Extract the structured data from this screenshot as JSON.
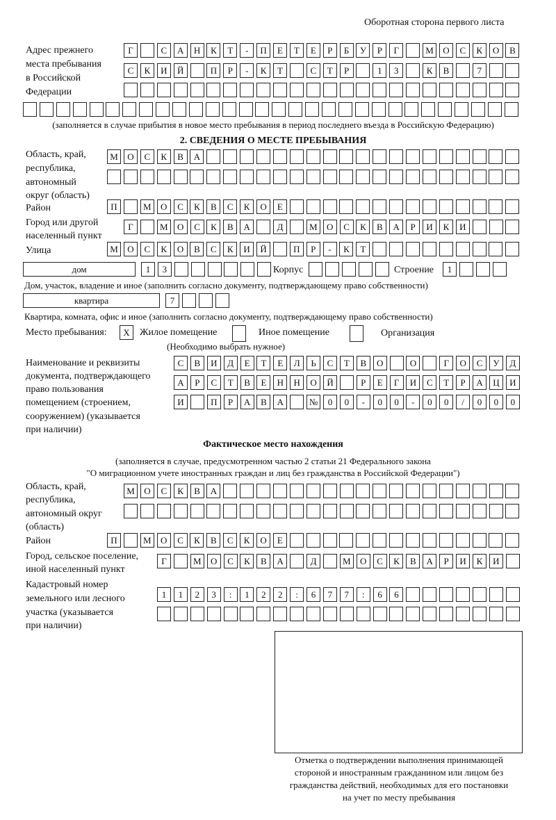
{
  "header": {
    "sheet_side": "Оборотная сторона первого листа"
  },
  "prev_address": {
    "label_lines": [
      "Адрес прежнего",
      "места пребывания",
      "в Российской",
      "Федерации"
    ],
    "rows": [
      [
        "Г",
        "",
        "С",
        "А",
        "Н",
        "К",
        "Т",
        "-",
        "П",
        "Е",
        "Т",
        "Е",
        "Р",
        "Б",
        "У",
        "Р",
        "Г",
        "",
        "М",
        "О",
        "С",
        "К",
        "О",
        "В"
      ],
      [
        "С",
        "К",
        "И",
        "Й",
        "",
        "П",
        "Р",
        "-",
        "К",
        "Т",
        "",
        "С",
        "Т",
        "Р",
        "",
        "1",
        "3",
        "",
        "К",
        "В",
        "",
        "7",
        "",
        ""
      ],
      [
        "",
        "",
        "",
        "",
        "",
        "",
        "",
        "",
        "",
        "",
        "",
        "",
        "",
        "",
        "",
        "",
        "",
        "",
        "",
        "",
        "",
        "",
        "",
        ""
      ],
      [
        "",
        "",
        "",
        "",
        "",
        "",
        "",
        "",
        "",
        "",
        "",
        "",
        "",
        "",
        "",
        "",
        "",
        "",
        "",
        "",
        "",
        "",
        "",
        "",
        "",
        "",
        "",
        "",
        "",
        ""
      ]
    ],
    "note": "(заполняется в случае прибытия в новое место пребывания в период последнего въезда в Российскую Федерацию)"
  },
  "stay": {
    "section_title": "2. СВЕДЕНИЯ О МЕСТЕ ПРЕБЫВАНИЯ",
    "region_label_lines": [
      "Область, край,",
      "республика,",
      "автономный",
      "округ (область)"
    ],
    "region_rows": [
      [
        "М",
        "О",
        "С",
        "К",
        "В",
        "А",
        "",
        "",
        "",
        "",
        "",
        "",
        "",
        "",
        "",
        "",
        "",
        "",
        "",
        "",
        "",
        "",
        "",
        "",
        ""
      ],
      [
        "",
        "",
        "",
        "",
        "",
        "",
        "",
        "",
        "",
        "",
        "",
        "",
        "",
        "",
        "",
        "",
        "",
        "",
        "",
        "",
        "",
        "",
        "",
        "",
        ""
      ]
    ],
    "district_label": "Район",
    "district_row": [
      "П",
      "",
      "М",
      "О",
      "С",
      "К",
      "В",
      "С",
      "К",
      "О",
      "Е",
      "",
      "",
      "",
      "",
      "",
      "",
      "",
      "",
      "",
      "",
      "",
      "",
      "",
      ""
    ],
    "city_label_lines": [
      "Город или другой",
      "населенный пункт"
    ],
    "city_row": [
      "Г",
      "",
      "М",
      "О",
      "С",
      "К",
      "В",
      "А",
      "",
      "Д",
      "",
      "М",
      "О",
      "С",
      "К",
      "В",
      "А",
      "Р",
      "И",
      "К",
      "И",
      "",
      "",
      ""
    ],
    "street_label": "Улица",
    "street_row": [
      "М",
      "О",
      "С",
      "К",
      "О",
      "В",
      "С",
      "К",
      "И",
      "Й",
      "",
      "П",
      "Р",
      "-",
      "К",
      "Т",
      "",
      "",
      "",
      "",
      "",
      "",
      "",
      "",
      ""
    ],
    "house_type": "дом",
    "house_cells": [
      "1",
      "3",
      "",
      "",
      "",
      "",
      "",
      ""
    ],
    "korpus_label": "Корпус",
    "korpus_cells": [
      "",
      "",
      "",
      "",
      ""
    ],
    "building_label": "Строение",
    "building_cells": [
      "1",
      "",
      "",
      ""
    ],
    "house_note": "Дом, участок, владение и иное (заполнить согласно документу, подтверждающему право собственности)",
    "apt_type": "квартира",
    "apt_cells": [
      "7",
      "",
      "",
      ""
    ],
    "apt_note": "Квартира, комната, офис и иное (заполнить согласно документу, подтверждающему право собственности)",
    "place_label": "Место пребывания:",
    "place_options": [
      {
        "label": "Жилое помещение",
        "mark": "X"
      },
      {
        "label": "Иное помещение",
        "mark": ""
      },
      {
        "label": "Организация",
        "mark": ""
      }
    ],
    "place_note": "(Необходимо выбрать нужное)",
    "doc_label_lines": [
      "Наименование и реквизиты",
      "документа, подтверждающего",
      "право пользования",
      "помещением (строением,",
      "сооружением) (указывается",
      "при наличии)"
    ],
    "doc_rows": [
      [
        "С",
        "В",
        "И",
        "Д",
        "Е",
        "Т",
        "Е",
        "Л",
        "Ь",
        "С",
        "Т",
        "В",
        "О",
        "",
        "О",
        "",
        "Г",
        "О",
        "С",
        "У",
        "Д"
      ],
      [
        "А",
        "Р",
        "С",
        "Т",
        "В",
        "Е",
        "Н",
        "Н",
        "О",
        "Й",
        "",
        "Р",
        "Е",
        "Г",
        "И",
        "С",
        "Т",
        "Р",
        "А",
        "Ц",
        "И"
      ],
      [
        "И",
        "",
        "П",
        "Р",
        "А",
        "В",
        "А",
        "",
        "№",
        "0",
        "0",
        "-",
        "0",
        "0",
        "-",
        "0",
        "0",
        "/",
        "0",
        "0",
        "0"
      ]
    ]
  },
  "actual": {
    "title": "Фактическое место нахождения",
    "note_lines": [
      "(заполняется в случае, предусмотренном частью 2 статьи 21 Федерального закона",
      "\"О миграционном учете иностранных граждан и лиц без гражданства в Российской Федерации\")"
    ],
    "region_label_lines": [
      "Область, край,",
      "республика,",
      "автономный округ",
      "(область)"
    ],
    "region_rows": [
      [
        "М",
        "О",
        "С",
        "К",
        "В",
        "А",
        "",
        "",
        "",
        "",
        "",
        "",
        "",
        "",
        "",
        "",
        "",
        "",
        "",
        "",
        "",
        "",
        "",
        ""
      ],
      [
        "",
        "",
        "",
        "",
        "",
        "",
        "",
        "",
        "",
        "",
        "",
        "",
        "",
        "",
        "",
        "",
        "",
        "",
        "",
        "",
        "",
        "",
        "",
        ""
      ]
    ],
    "district_label": "Район",
    "district_row": [
      "П",
      "",
      "М",
      "О",
      "С",
      "К",
      "В",
      "С",
      "К",
      "О",
      "Е",
      "",
      "",
      "",
      "",
      "",
      "",
      "",
      "",
      "",
      "",
      "",
      "",
      "",
      ""
    ],
    "city_label_lines": [
      "Город, сельское поселение,",
      "иной населенный пункт"
    ],
    "city_row": [
      "Г",
      "",
      "М",
      "О",
      "С",
      "К",
      "В",
      "А",
      "",
      "Д",
      "",
      "М",
      "О",
      "С",
      "К",
      "В",
      "А",
      "Р",
      "И",
      "К",
      "И",
      ""
    ],
    "cadastral_label_lines": [
      "Кадастровый номер",
      "земельного или лесного",
      "участка (указывается",
      "при наличии)"
    ],
    "cadastral_rows": [
      [
        "1",
        "1",
        "2",
        "3",
        ":",
        "1",
        "2",
        "2",
        ":",
        "6",
        "7",
        "7",
        ":",
        "6",
        "6",
        "",
        "",
        "",
        "",
        "",
        "",
        ""
      ],
      [
        "",
        "",
        "",
        "",
        "",
        "",
        "",
        "",
        "",
        "",
        "",
        "",
        "",
        "",
        "",
        "",
        "",
        "",
        "",
        "",
        "",
        ""
      ]
    ]
  },
  "confirmation": {
    "caption_lines": [
      "Отметка о подтверждении выполнения принимающей",
      "стороной и иностранным гражданином или лицом без",
      "гражданства действий, необходимых для его постановки",
      "на учет по месту пребывания"
    ]
  }
}
